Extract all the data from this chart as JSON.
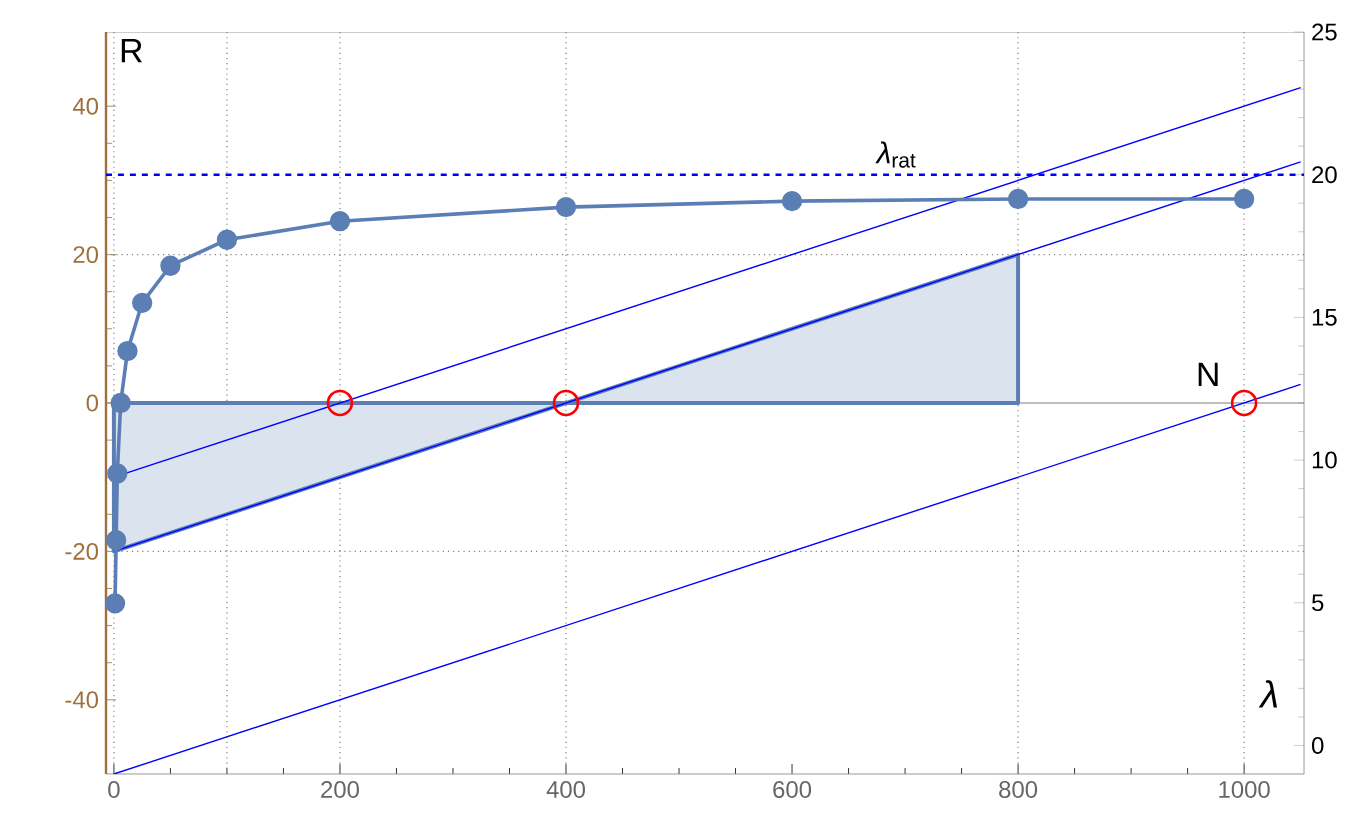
{
  "chart_data": {
    "type": "line",
    "xlabel": "N",
    "ylabel": "R",
    "y2label": "λ",
    "xlim": [
      -7,
      1053
    ],
    "ylim": [
      -50,
      50
    ],
    "y2lim": [
      -1,
      25
    ],
    "xticks": [
      0,
      200,
      400,
      600,
      800,
      1000
    ],
    "yticks": [
      -40,
      -20,
      0,
      20,
      40
    ],
    "y2ticks": [
      0,
      5,
      10,
      15,
      20,
      25
    ],
    "grid": false,
    "ref_lines": [
      {
        "axis": "x",
        "value": 0,
        "color": "#808080",
        "line_style": "dotted"
      },
      {
        "axis": "x",
        "value": 100,
        "color": "#808080",
        "line_style": "dotted"
      },
      {
        "axis": "x",
        "value": 200,
        "color": "#808080",
        "line_style": "dotted"
      },
      {
        "axis": "x",
        "value": 400,
        "color": "#808080",
        "line_style": "dotted"
      },
      {
        "axis": "x",
        "value": 800,
        "color": "#808080",
        "line_style": "dotted"
      },
      {
        "axis": "x",
        "value": 1000,
        "color": "#808080",
        "line_style": "dotted"
      },
      {
        "axis": "y",
        "value": -20,
        "color": "#808080",
        "line_style": "dotted"
      },
      {
        "axis": "y",
        "value": 20,
        "color": "#808080",
        "line_style": "dotted"
      },
      {
        "axis": "y",
        "value": 0,
        "color": "#808080",
        "line_style": "solid"
      },
      {
        "axis": "y2",
        "value": 20,
        "color": "#0000ff",
        "line_style": "dashed",
        "label": "*λ*$_{rat}$"
      }
    ],
    "series": [
      {
        "type": "area",
        "color": "#5b7fb5",
        "x": [
          0,
          800,
          800,
          0
        ],
        "values": [
          0,
          0,
          20,
          -20
        ]
      },
      {
        "color": "#0000ff",
        "x": [
          0,
          1050
        ],
        "values": [
          -10,
          42.5
        ]
      },
      {
        "color": "#0000ff",
        "x": [
          0,
          1050
        ],
        "values": [
          -20,
          32.5
        ]
      },
      {
        "color": "#0000ff",
        "x": [
          0,
          1050
        ],
        "values": [
          -50,
          2.5
        ]
      },
      {
        "color": "#5b7fb5",
        "marker": "circle",
        "x": [
          1,
          2,
          3,
          6,
          12,
          25,
          50,
          100,
          200,
          400,
          600,
          800,
          1000
        ],
        "values": [
          -27,
          -18.5,
          -9.5,
          0,
          7,
          13.5,
          18.5,
          22,
          24.5,
          26.4,
          27.2,
          27.5,
          27.5
        ]
      },
      {
        "type": "scatter",
        "color": "#ff0000",
        "marker": "circle",
        "x": [
          200,
          400,
          1000
        ],
        "values": [
          0,
          0,
          0
        ]
      }
    ]
  }
}
